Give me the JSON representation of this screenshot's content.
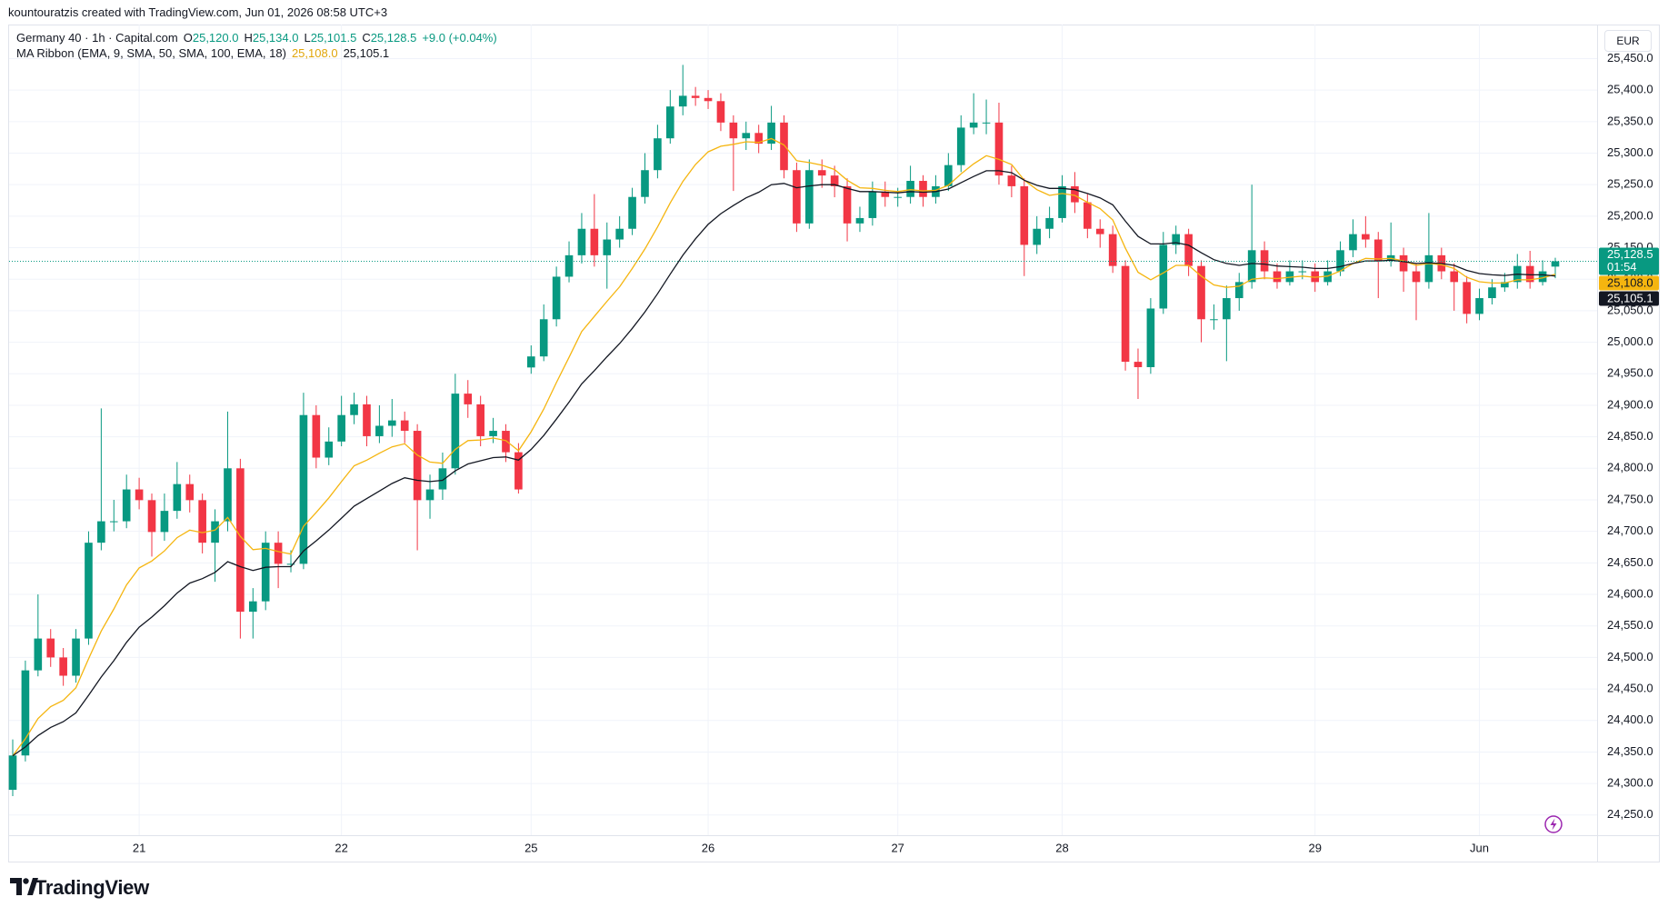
{
  "attribution": "kountouratzis created with TradingView.com, Jun 01, 2026 08:58 UTC+3",
  "chart_data": {
    "type": "candlestick",
    "legend": {
      "symbol": "Germany 40 · 1h · Capital.com",
      "fields": [
        {
          "key": "O",
          "label": "25,120.0"
        },
        {
          "key": "H",
          "label": "25,134.0"
        },
        {
          "key": "L",
          "label": "25,101.5"
        },
        {
          "key": "C",
          "label": "25,128.5"
        }
      ],
      "change": "+9.0 (+0.04%)"
    },
    "currency": "EUR",
    "categories": [
      null,
      null,
      null,
      null,
      null,
      null,
      null,
      null,
      null,
      null,
      "21",
      null,
      null,
      null,
      null,
      null,
      null,
      null,
      null,
      null,
      null,
      null,
      null,
      null,
      null,
      null,
      "22",
      null,
      null,
      null,
      null,
      null,
      null,
      null,
      null,
      null,
      null,
      null,
      null,
      null,
      null,
      "25",
      null,
      null,
      null,
      null,
      null,
      null,
      null,
      null,
      null,
      null,
      null,
      null,
      null,
      "26",
      null,
      null,
      null,
      null,
      null,
      null,
      null,
      null,
      null,
      null,
      null,
      null,
      null,
      null,
      "27",
      null,
      null,
      null,
      null,
      null,
      null,
      null,
      null,
      null,
      null,
      null,
      null,
      "28",
      null,
      null,
      null,
      null,
      null,
      null,
      null,
      null,
      null,
      null,
      null,
      null,
      null,
      null,
      null,
      null,
      null,
      null,
      null,
      "29",
      null,
      null,
      null,
      null,
      null,
      null,
      null,
      null,
      null,
      null,
      null,
      null,
      "Jun",
      null,
      null,
      null,
      null,
      null,
      null
    ],
    "open": [
      24290,
      24344.5,
      24479.5,
      24530,
      24500,
      24471,
      24530,
      24682,
      24716,
      24716,
      24766.5,
      24749.5,
      24699,
      24732.5,
      24775,
      24749.5,
      24682,
      24716,
      24800,
      24572.5,
      24589,
      24682,
      24648.5,
      24648.5,
      24884.5,
      24817,
      24842.5,
      24884.5,
      24901.5,
      24851,
      24867.5,
      24876,
      24859.5,
      24749.5,
      24766.5,
      24800,
      24918.5,
      24901.5,
      24851,
      24859.5,
      24825.5,
      24960,
      24977.5,
      25036.5,
      25104,
      25138,
      25180,
      25138,
      25163,
      25180,
      25230.5,
      25273,
      25323.5,
      25374,
      25391,
      25387.5,
      25382.5,
      25348.5,
      25323.5,
      25332,
      25315,
      25348.5,
      25273,
      25188.5,
      25273,
      25264.5,
      25247.5,
      25188.5,
      25197,
      25239,
      25230.5,
      25230.5,
      25256,
      25230.5,
      25247.5,
      25281,
      25340.5,
      25348.5,
      25348.5,
      25264.5,
      25247.5,
      25154.5,
      25180,
      25197,
      25247.5,
      25222,
      25180,
      25171.5,
      25121,
      24969,
      24960.5,
      25053.5,
      25154.5,
      25171.5,
      25121,
      25036.5,
      25036.5,
      25070,
      25095.5,
      25146,
      25112.5,
      25095.5,
      25112.5,
      25112.5,
      25095.5,
      25112.5,
      25146,
      25171.5,
      25163,
      25129.5,
      25138,
      25112.5,
      25095.5,
      25138,
      25112.5,
      25095.5,
      25045,
      25070,
      25087,
      25095.5,
      25121,
      25095.5,
      25120
    ],
    "high": [
      24370,
      24495,
      24600,
      24545,
      24515,
      24545,
      24700,
      24895,
      24750,
      24790,
      24785,
      24760,
      24760,
      24810,
      24790,
      24760,
      24735,
      24890,
      24815,
      24610,
      24700,
      24700,
      24670,
      24920,
      24900,
      24865,
      24915,
      24920,
      24915,
      24900,
      24910,
      24890,
      24870,
      24790,
      24825,
      24950,
      24940,
      24915,
      24880,
      24870,
      24840,
      24995,
      25060,
      25120,
      25160,
      25205,
      25235,
      25190,
      25200,
      25245,
      25300,
      25345,
      25400,
      25440,
      25405,
      25400,
      25395,
      25360,
      25350,
      25345,
      25375,
      25360,
      25285,
      25290,
      25290,
      25280,
      25260,
      25215,
      25255,
      25255,
      25245,
      25280,
      25265,
      25265,
      25300,
      25360,
      25395,
      25385,
      25380,
      25280,
      25260,
      25200,
      25215,
      25265,
      25270,
      25235,
      25195,
      25185,
      25130,
      24990,
      25070,
      25175,
      25185,
      25180,
      25130,
      25060,
      25090,
      25110,
      25250,
      25160,
      25125,
      25130,
      25130,
      25125,
      25130,
      25160,
      25195,
      25200,
      25175,
      25190,
      25150,
      25125,
      25205,
      25150,
      25125,
      25105,
      25085,
      25100,
      25110,
      25140,
      25145,
      25130,
      25134
    ],
    "low": [
      24280,
      24335,
      24470,
      24485,
      24455,
      24460,
      24520,
      24670,
      24700,
      24705,
      24735,
      24660,
      24685,
      24720,
      24730,
      24665,
      24620,
      24700,
      24530,
      24530,
      24575,
      24610,
      24635,
      24640,
      24800,
      24805,
      24835,
      24870,
      24835,
      24840,
      24850,
      24840,
      24670,
      24720,
      24750,
      24790,
      24880,
      24835,
      24840,
      24810,
      24760,
      24950,
      24970,
      25025,
      25095,
      25125,
      25120,
      25085,
      25150,
      25170,
      25220,
      25260,
      25315,
      25360,
      25375,
      25370,
      25335,
      25240,
      25305,
      25300,
      25305,
      25260,
      25175,
      25180,
      25245,
      25230,
      25160,
      25175,
      25185,
      25215,
      25215,
      25220,
      25215,
      25220,
      25240,
      25270,
      25330,
      25330,
      25250,
      25230,
      25105,
      25140,
      25165,
      25190,
      25205,
      25165,
      25150,
      25110,
      24955,
      24910,
      24950,
      25045,
      25140,
      25105,
      25000,
      25020,
      24970,
      25050,
      25085,
      25100,
      25085,
      25090,
      25100,
      25080,
      25090,
      25105,
      25135,
      25150,
      25070,
      25120,
      25080,
      25035,
      25085,
      25100,
      25050,
      25030,
      25035,
      25060,
      25080,
      25085,
      25085,
      25090,
      25101.5
    ],
    "close": [
      24344.5,
      24479.5,
      24530,
      24500,
      24471,
      24530,
      24682,
      24716,
      24716,
      24766.5,
      24749.5,
      24699,
      24732.5,
      24775,
      24749.5,
      24682,
      24716,
      24800,
      24572.5,
      24589,
      24682,
      24648.5,
      24648.5,
      24884.5,
      24817,
      24842.5,
      24884.5,
      24901.5,
      24851,
      24867.5,
      24876,
      24859.5,
      24749.5,
      24766.5,
      24800,
      24918.5,
      24901.5,
      24851,
      24859.5,
      24825.5,
      24766.5,
      24977.5,
      25036.5,
      25104,
      25138,
      25180,
      25138,
      25163,
      25180,
      25230.5,
      25273,
      25323.5,
      25374,
      25391,
      25387.5,
      25382.5,
      25348.5,
      25323.5,
      25332,
      25315,
      25348.5,
      25273,
      25188.5,
      25273,
      25264.5,
      25247.5,
      25188.5,
      25197,
      25239,
      25230.5,
      25230.5,
      25256,
      25230.5,
      25247.5,
      25281,
      25340.5,
      25348.5,
      25348.5,
      25264.5,
      25247.5,
      25154.5,
      25180,
      25197,
      25247.5,
      25222,
      25180,
      25171.5,
      25121,
      24969,
      24960.5,
      25053.5,
      25154.5,
      25171.5,
      25121,
      25036.5,
      25036.5,
      25070,
      25095.5,
      25146,
      25112.5,
      25095.5,
      25112.5,
      25112.5,
      25095.5,
      25112.5,
      25146,
      25171.5,
      25163,
      25129.5,
      25138,
      25112.5,
      25095.5,
      25138,
      25112.5,
      25095.5,
      25045,
      25070,
      25087,
      25095.5,
      25121,
      25095.5,
      25112.5,
      25128.5
    ],
    "up_color": "#089981",
    "down_color": "#f23645",
    "indicator": {
      "label": "MA Ribbon (EMA, 9, SMA, 50, SMA, 100, EMA, 18)",
      "series": [
        {
          "color": "#f5b50f",
          "label_text_color": "#131722",
          "last_value_label": "25,108.0",
          "values": [
            24344,
            24371,
            24403,
            24422,
            24432,
            24452,
            24498,
            24542,
            24577,
            24615,
            24642,
            24653,
            24669,
            24690,
            24702,
            24698,
            24702,
            24722,
            24692,
            24671,
            24673,
            24668,
            24664,
            24708,
            24730,
            24753,
            24779,
            24804,
            24813,
            24824,
            24834,
            24839,
            24821,
            24810,
            24808,
            24830,
            24844,
            24845,
            24848,
            24844,
            24828,
            24858,
            24894,
            24936,
            24976,
            25017,
            25041,
            25065,
            25088,
            25117,
            25148,
            25183,
            25221,
            25255,
            25282,
            25302,
            25311,
            25314,
            25318,
            25317,
            25323,
            25313,
            25288,
            25285,
            25281,
            25274,
            25257,
            25245,
            25244,
            25241,
            25239,
            25242,
            25240,
            25241,
            25249,
            25267,
            25283,
            25296,
            25290,
            25282,
            25257,
            25242,
            25233,
            25236,
            25233,
            25222,
            25212,
            25194,
            25149,
            25111,
            25099,
            25110,
            25122,
            25122,
            25105,
            25091,
            25087,
            25089,
            25100,
            25102,
            25101,
            25103,
            25105,
            25103,
            25105,
            25113,
            25125,
            25133,
            25132,
            25133,
            25129,
            25122,
            25125,
            25123,
            25117,
            25103,
            25096,
            25094,
            25094,
            25099,
            25099,
            25102,
            25108
          ]
        },
        {
          "color": "#131722",
          "label_text_color": "#ffffff",
          "last_value_label": "25,105.1",
          "values": [
            24344,
            24358,
            24376,
            24389,
            24398,
            24412,
            24440,
            24469,
            24495,
            24524,
            24548,
            24564,
            24582,
            24602,
            24618,
            24625,
            24635,
            24652,
            24644,
            24638,
            24643,
            24644,
            24644,
            24669,
            24685,
            24702,
            24721,
            24740,
            24752,
            24764,
            24776,
            24785,
            24781,
            24779,
            24781,
            24796,
            24807,
            24812,
            24817,
            24818,
            24813,
            24830,
            24852,
            24878,
            24905,
            24934,
            24955,
            24977,
            24998,
            25022,
            25048,
            25077,
            25108,
            25138,
            25164,
            25187,
            25204,
            25217,
            25229,
            25238,
            25250,
            25252,
            25245,
            25248,
            25250,
            25250,
            25244,
            25239,
            25239,
            25238,
            25237,
            25239,
            25238,
            25239,
            25243,
            25253,
            25263,
            25272,
            25272,
            25269,
            25257,
            25249,
            25244,
            25244,
            25242,
            25236,
            25229,
            25218,
            25192,
            25168,
            25156,
            25156,
            25158,
            25154,
            25142,
            25131,
            25125,
            25122,
            25125,
            25124,
            25121,
            25120,
            25119,
            25117,
            25117,
            25120,
            25125,
            25129,
            25129,
            25130,
            25128,
            25125,
            25126,
            25125,
            25122,
            25114,
            25109,
            25107,
            25106,
            25108,
            25107,
            25107,
            25105.1
          ]
        }
      ]
    },
    "last_price": {
      "label": "25,128.5",
      "countdown": "01:54"
    },
    "ylim": [
      24218,
      25504
    ],
    "yticks": [
      {
        "value": 24250,
        "label": "24,250.0"
      },
      {
        "value": 24300,
        "label": "24,300.0"
      },
      {
        "value": 24350,
        "label": "24,350.0"
      },
      {
        "value": 24400,
        "label": "24,400.0"
      },
      {
        "value": 24450,
        "label": "24,450.0"
      },
      {
        "value": 24500,
        "label": "24,500.0"
      },
      {
        "value": 24550,
        "label": "24,550.0"
      },
      {
        "value": 24600,
        "label": "24,600.0"
      },
      {
        "value": 24650,
        "label": "24,650.0"
      },
      {
        "value": 24700,
        "label": "24,700.0"
      },
      {
        "value": 24750,
        "label": "24,750.0"
      },
      {
        "value": 24800,
        "label": "24,800.0"
      },
      {
        "value": 24850,
        "label": "24,850.0"
      },
      {
        "value": 24900,
        "label": "24,900.0"
      },
      {
        "value": 24950,
        "label": "24,950.0"
      },
      {
        "value": 25000,
        "label": "25,000.0"
      },
      {
        "value": 25050,
        "label": "25,050.0"
      },
      {
        "value": 25100,
        "label": "25,100.0"
      },
      {
        "value": 25150,
        "label": "25,150.0"
      },
      {
        "value": 25200,
        "label": "25,200.0"
      },
      {
        "value": 25250,
        "label": "25,250.0"
      },
      {
        "value": 25300,
        "label": "25,300.0"
      },
      {
        "value": 25350,
        "label": "25,350.0"
      },
      {
        "value": 25400,
        "label": "25,400.0"
      },
      {
        "value": 25450,
        "label": "25,450.0"
      }
    ],
    "grid": true
  },
  "footer": {
    "logo": "TradingView"
  }
}
